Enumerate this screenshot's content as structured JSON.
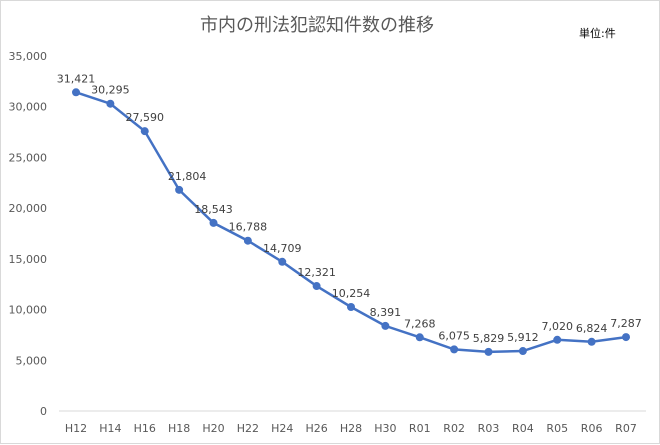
{
  "chart_data": {
    "type": "line",
    "title": "市内の刑法犯認知件数の推移",
    "unit_label": "単位:件",
    "categories": [
      "H12",
      "H14",
      "H16",
      "H18",
      "H20",
      "H22",
      "H24",
      "H26",
      "H28",
      "H30",
      "R01",
      "R02",
      "R03",
      "R04",
      "R05",
      "R06",
      "R07"
    ],
    "values": [
      31421,
      30295,
      27590,
      21804,
      18543,
      16788,
      14709,
      12321,
      10254,
      8391,
      7268,
      6075,
      5829,
      5912,
      7020,
      6824,
      7287
    ],
    "value_labels": [
      "31,421",
      "30,295",
      "27,590",
      "21,804",
      "18,543",
      "16,788",
      "14,709",
      "12,321",
      "10,254",
      "8,391",
      "7,268",
      "6,075",
      "5,829",
      "5,912",
      "7,020",
      "6,824",
      "7,287"
    ],
    "y_ticks": [
      "0",
      "5,000",
      "10,000",
      "15,000",
      "20,000",
      "25,000",
      "30,000",
      "35,000"
    ],
    "ylim": [
      0,
      35000
    ],
    "grid": false,
    "legend": "none",
    "line_color": "#4472c4"
  }
}
